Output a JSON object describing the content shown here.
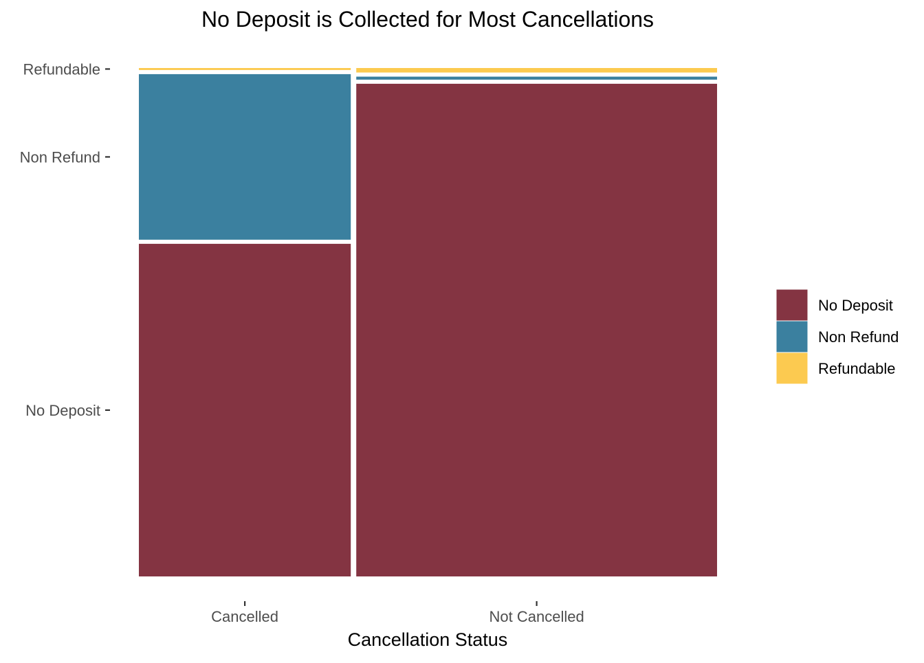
{
  "chart_data": {
    "type": "mosaic",
    "title": "No Deposit is Collected for Most Cancellations",
    "xlabel": "Cancellation Status",
    "ylabel": "",
    "categories": [
      "Cancelled",
      "Not Cancelled"
    ],
    "x_shares": [
      0.37,
      0.63
    ],
    "series": [
      {
        "name": "No Deposit",
        "color": "#843442",
        "values": [
          0.665,
          0.985
        ]
      },
      {
        "name": "Non Refund",
        "color": "#3B809F",
        "values": [
          0.331,
          0.006
        ]
      },
      {
        "name": "Refundable",
        "color": "#FCCA50",
        "values": [
          0.004,
          0.009
        ]
      }
    ],
    "y_tick_labels": [
      "No Deposit",
      "Non Refund",
      "Refundable"
    ],
    "legend": {
      "position": "right",
      "entries": [
        "No Deposit",
        "Non Refund",
        "Refundable"
      ]
    },
    "grid": false
  }
}
